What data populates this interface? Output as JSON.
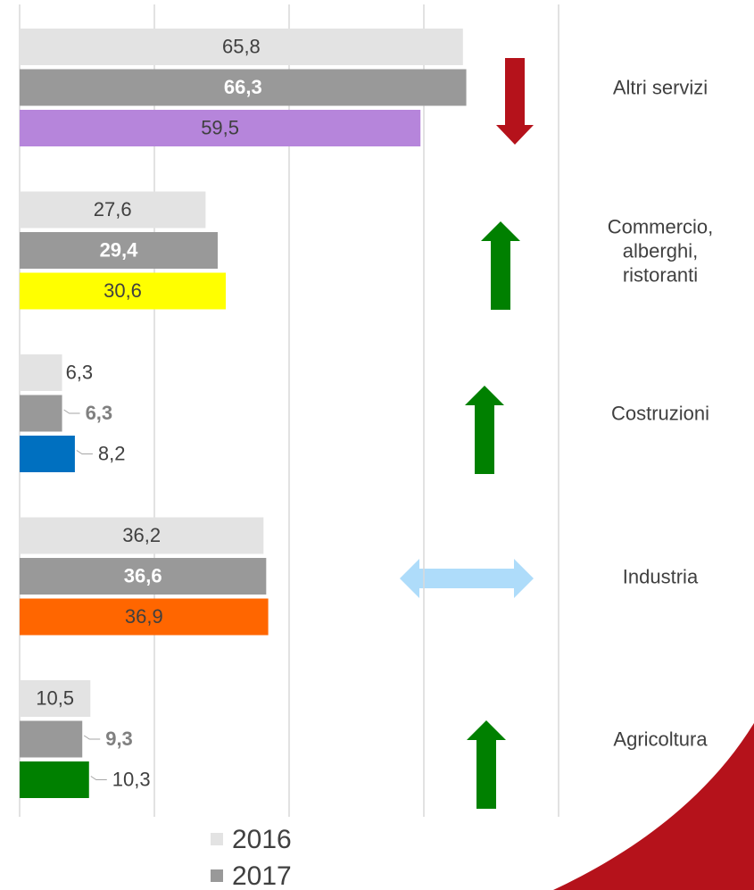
{
  "chart_data": {
    "type": "bar",
    "orientation": "horizontal",
    "categories": [
      "Altri servizi",
      "Commercio,\nalberghi,\nristoranti",
      "Costruzioni",
      "Industria",
      "Agricoltura"
    ],
    "series": [
      {
        "name": "2016",
        "color": "#e3e3e3",
        "values": [
          65.8,
          27.6,
          6.3,
          36.2,
          10.5
        ],
        "value_labels": [
          "65,8",
          "27,6",
          "6,3",
          "36,2",
          "10,5"
        ]
      },
      {
        "name": "2017",
        "color": "#999999",
        "values": [
          66.3,
          29.4,
          6.3,
          36.6,
          9.3
        ],
        "value_labels": [
          "66,3",
          "29,4",
          "6,3",
          "36,6",
          "9,3"
        ]
      },
      {
        "colors": [
          "#b685db",
          "#ffff00",
          "#0070c0",
          "#ff6600",
          "#008000"
        ],
        "values": [
          59.5,
          30.6,
          8.2,
          36.9,
          10.3
        ],
        "value_labels": [
          "59,5",
          "30,6",
          "8,2",
          "36,9",
          "10,3"
        ]
      }
    ],
    "xlim": [
      0,
      80
    ],
    "xticks": [
      0,
      20,
      40,
      60,
      80
    ],
    "grid": true
  }
}
